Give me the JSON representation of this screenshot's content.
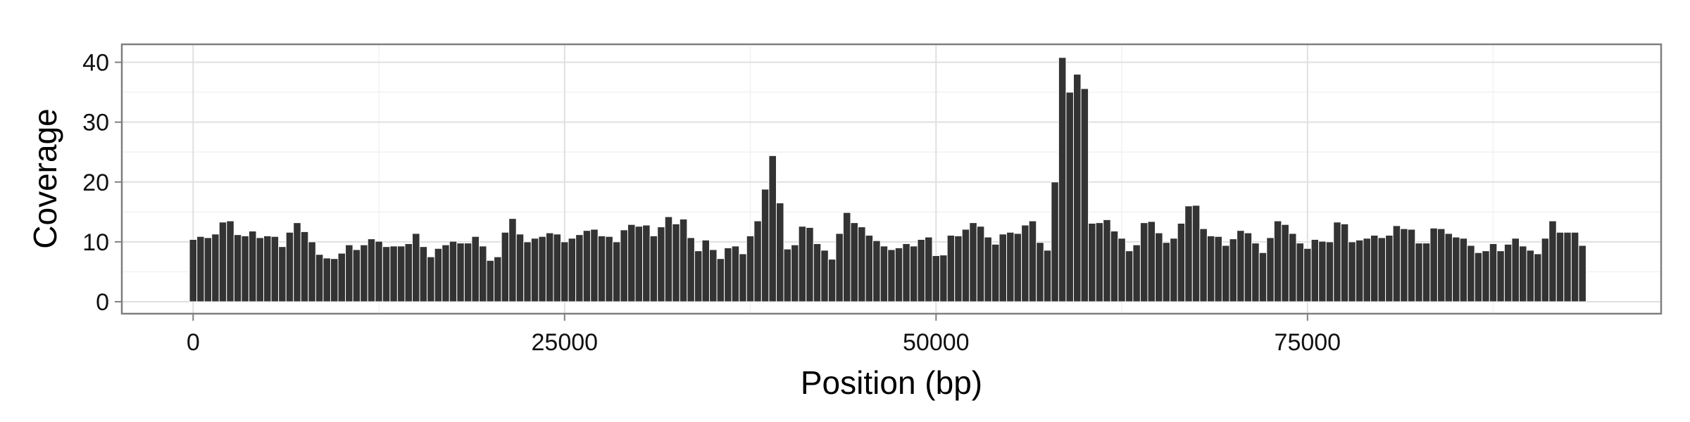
{
  "colors": {
    "bar": "#333333",
    "bar_stroke": "#ffffff",
    "panel_border": "#7f7f7f",
    "grid_major": "#e0e0e0",
    "grid_minor": "#f2f2f2",
    "tick": "#7f7f7f"
  },
  "chart_data": {
    "type": "bar",
    "title": "",
    "xlabel": "Position (bp)",
    "ylabel": "Coverage",
    "xlim": [
      -4800,
      98800
    ],
    "ylim": [
      -2,
      43
    ],
    "xticks": [
      0,
      25000,
      50000,
      75000
    ],
    "yticks": [
      0,
      10,
      20,
      30,
      40
    ],
    "grid": true,
    "legend": "none",
    "bin_width_bp": 500,
    "x": [
      0,
      500,
      1000,
      1500,
      2000,
      2500,
      3000,
      3500,
      4000,
      4500,
      5000,
      5500,
      6000,
      6500,
      7000,
      7500,
      8000,
      8500,
      9000,
      9500,
      10000,
      10500,
      11000,
      11500,
      12000,
      12500,
      13000,
      13500,
      14000,
      14500,
      15000,
      15500,
      16000,
      16500,
      17000,
      17500,
      18000,
      18500,
      19000,
      19500,
      20000,
      20500,
      21000,
      21500,
      22000,
      22500,
      23000,
      23500,
      24000,
      24500,
      25000,
      25500,
      26000,
      26500,
      27000,
      27500,
      28000,
      28500,
      29000,
      29500,
      30000,
      30500,
      31000,
      31500,
      32000,
      32500,
      33000,
      33500,
      34000,
      34500,
      35000,
      35500,
      36000,
      36500,
      37000,
      37500,
      38000,
      38500,
      39000,
      39500,
      40000,
      40500,
      41000,
      41500,
      42000,
      42500,
      43000,
      43500,
      44000,
      44500,
      45000,
      45500,
      46000,
      46500,
      47000,
      47500,
      48000,
      48500,
      49000,
      49500,
      50000,
      50500,
      51000,
      51500,
      52000,
      52500,
      53000,
      53500,
      54000,
      54500,
      55000,
      55500,
      56000,
      56500,
      57000,
      57500,
      58000,
      58500,
      59000,
      59500,
      60000,
      60500,
      61000,
      61500,
      62000,
      62500,
      63000,
      63500,
      64000,
      64500,
      65000,
      65500,
      66000,
      66500,
      67000,
      67500,
      68000,
      68500,
      69000,
      69500,
      70000,
      70500,
      71000,
      71500,
      72000,
      72500,
      73000,
      73500,
      74000,
      74500,
      75000,
      75500,
      76000,
      76500,
      77000,
      77500,
      78000,
      78500,
      79000,
      79500,
      80000,
      80500,
      81000,
      81500,
      82000,
      82500,
      83000,
      83500,
      84000,
      84500,
      85000,
      85500,
      86000,
      86500,
      87000,
      87500,
      88000,
      88500,
      89000,
      89500,
      90000,
      90500,
      91000,
      91500,
      92000,
      92500,
      93000,
      93500
    ],
    "values": [
      10.4,
      10.9,
      10.7,
      11.3,
      13.3,
      13.5,
      11.2,
      11.0,
      11.8,
      10.7,
      11.0,
      10.9,
      9.2,
      11.6,
      13.2,
      11.7,
      10.0,
      7.9,
      7.3,
      7.2,
      8.1,
      9.5,
      8.7,
      9.5,
      10.5,
      10.1,
      9.2,
      9.3,
      9.3,
      9.7,
      11.4,
      9.2,
      7.5,
      8.9,
      9.5,
      10.1,
      9.8,
      9.8,
      10.9,
      9.3,
      6.9,
      7.5,
      11.6,
      13.9,
      11.3,
      10.0,
      10.6,
      10.9,
      11.5,
      11.3,
      10.0,
      10.6,
      11.2,
      11.9,
      12.1,
      11.0,
      10.9,
      10.0,
      12.0,
      12.9,
      12.6,
      12.8,
      11.0,
      12.5,
      14.2,
      13.0,
      13.8,
      10.7,
      8.5,
      10.3,
      8.7,
      7.2,
      9.0,
      9.3,
      8.0,
      11.0,
      13.5,
      18.8,
      24.4,
      16.5,
      8.8,
      9.5,
      12.6,
      12.4,
      9.7,
      8.6,
      7.1,
      11.4,
      14.9,
      13.2,
      12.5,
      11.1,
      10.2,
      9.3,
      8.7,
      9.0,
      9.7,
      9.3,
      10.4,
      10.8,
      7.7,
      7.8,
      11.1,
      11.0,
      12.1,
      13.2,
      12.6,
      10.8,
      9.6,
      11.3,
      11.6,
      11.4,
      12.8,
      13.5,
      9.9,
      8.6,
      20.0,
      40.8,
      35.0,
      38.0,
      35.6,
      13.1,
      13.2,
      13.7,
      11.8,
      10.6,
      8.5,
      9.5,
      13.2,
      13.4,
      11.5,
      9.9,
      10.6,
      13.1,
      16.0,
      16.1,
      12.2,
      11.0,
      10.9,
      9.4,
      10.5,
      11.9,
      11.5,
      9.8,
      8.2,
      10.7,
      13.5,
      12.9,
      11.4,
      9.8,
      8.9,
      10.4,
      10.1,
      10.0,
      13.3,
      13.0,
      10.0,
      10.3,
      10.6,
      11.1,
      10.7,
      11.1,
      12.7,
      12.2,
      12.1,
      9.8,
      9.8,
      12.3,
      12.2,
      11.4,
      10.8,
      10.6,
      9.4,
      8.2,
      8.5,
      9.7,
      8.5,
      9.6,
      10.6,
      9.3,
      8.6,
      8.0,
      10.6,
      13.5,
      11.6,
      11.6,
      11.6,
      9.4
    ]
  }
}
